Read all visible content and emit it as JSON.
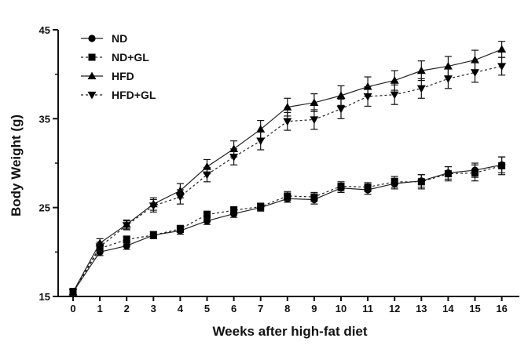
{
  "chart_data": {
    "type": "line",
    "title": "",
    "xlabel": "Weeks after high-fat diet",
    "ylabel": "Body Weight (g)",
    "x": [
      0,
      1,
      2,
      3,
      4,
      5,
      6,
      7,
      8,
      9,
      10,
      11,
      12,
      13,
      14,
      15,
      16
    ],
    "x_ticks": [
      "0",
      "1",
      "2",
      "3",
      "4",
      "5",
      "6",
      "7",
      "8",
      "9",
      "10",
      "11",
      "12",
      "13",
      "14",
      "15",
      "16"
    ],
    "xlim": [
      0,
      16
    ],
    "ylim": [
      15,
      45
    ],
    "y_ticks": [
      15,
      25,
      35,
      45
    ],
    "y_tick_labels": [
      "15",
      "25",
      "35",
      "45"
    ],
    "grid": false,
    "legend_position": "top-left",
    "series": [
      {
        "name": "ND",
        "marker": "circle",
        "line_style": "solid",
        "values": [
          15.5,
          20.0,
          20.7,
          21.9,
          22.4,
          23.5,
          24.3,
          25.0,
          26.0,
          25.9,
          27.2,
          27.0,
          27.7,
          28.0,
          28.9,
          29.2,
          29.8
        ],
        "errors": [
          0.4,
          0.4,
          0.4,
          0.4,
          0.4,
          0.4,
          0.4,
          0.4,
          0.4,
          0.5,
          0.5,
          0.5,
          0.6,
          0.7,
          0.7,
          0.8,
          0.9
        ]
      },
      {
        "name": "ND+GL",
        "marker": "square",
        "line_style": "dashed",
        "values": [
          15.5,
          20.4,
          21.4,
          21.9,
          22.6,
          24.2,
          24.7,
          25.1,
          26.3,
          26.2,
          27.4,
          27.3,
          27.9,
          27.9,
          28.8,
          28.9,
          29.7
        ],
        "errors": [
          0.4,
          0.4,
          0.4,
          0.4,
          0.4,
          0.4,
          0.4,
          0.4,
          0.5,
          0.5,
          0.5,
          0.5,
          0.6,
          0.8,
          0.8,
          0.9,
          1.0
        ]
      },
      {
        "name": "HFD",
        "marker": "triangle-up",
        "line_style": "solid",
        "values": [
          15.5,
          21.0,
          23.1,
          25.4,
          26.9,
          29.6,
          31.6,
          33.8,
          36.3,
          36.8,
          37.6,
          38.6,
          39.3,
          40.4,
          40.9,
          41.6,
          42.8
        ],
        "errors": [
          0.4,
          0.5,
          0.5,
          0.7,
          0.8,
          0.8,
          0.9,
          1.0,
          1.0,
          1.0,
          1.1,
          1.1,
          1.1,
          1.1,
          1.1,
          1.1,
          0.9
        ]
      },
      {
        "name": "HFD+GL",
        "marker": "triangle-down",
        "line_style": "dashed",
        "values": [
          15.5,
          20.6,
          23.0,
          25.2,
          26.2,
          28.7,
          30.7,
          32.5,
          34.7,
          34.9,
          36.1,
          37.5,
          37.7,
          38.4,
          39.5,
          40.2,
          40.9
        ],
        "errors": [
          0.4,
          0.5,
          0.5,
          0.7,
          0.8,
          0.8,
          0.9,
          1.0,
          1.0,
          1.1,
          1.1,
          1.1,
          1.1,
          1.1,
          1.1,
          1.1,
          1.0
        ]
      }
    ]
  }
}
